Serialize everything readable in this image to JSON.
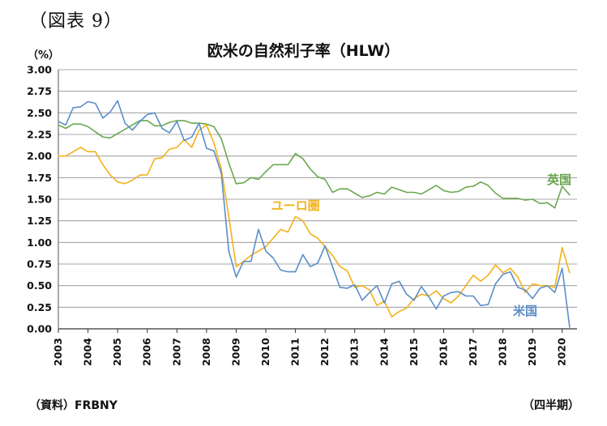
{
  "figure_label": "（図表 9）",
  "title": "欧米の自然利子率（HLW）",
  "unit": "（%）",
  "source": "（資料）FRBNY",
  "period_label": "（四半期）",
  "chart_data": {
    "type": "line",
    "title": "欧米の自然利子率（HLW）",
    "ylabel": "（%）",
    "xlabel": "",
    "ylim": [
      0,
      3
    ],
    "xlim": [
      2003,
      2020.5
    ],
    "grid": true,
    "legend": "inline labels near series",
    "y_ticks": [
      "0.00",
      "0.25",
      "0.50",
      "0.75",
      "1.00",
      "1.25",
      "1.50",
      "1.75",
      "2.00",
      "2.25",
      "2.50",
      "2.75",
      "3.00"
    ],
    "x_ticks": [
      "2003",
      "2004",
      "2005",
      "2006",
      "2007",
      "2008",
      "2009",
      "2010",
      "2011",
      "2012",
      "2013",
      "2014",
      "2015",
      "2016",
      "2017",
      "2018",
      "2019",
      "2020"
    ],
    "series": [
      {
        "name": "英国",
        "color": "#6aa84f",
        "label_at": [
          2019.9,
          1.68
        ],
        "points": [
          [
            2003.0,
            2.36
          ],
          [
            2003.25,
            2.32
          ],
          [
            2003.5,
            2.37
          ],
          [
            2003.75,
            2.37
          ],
          [
            2004.0,
            2.34
          ],
          [
            2004.25,
            2.28
          ],
          [
            2004.5,
            2.22
          ],
          [
            2004.75,
            2.21
          ],
          [
            2005.0,
            2.26
          ],
          [
            2005.25,
            2.31
          ],
          [
            2005.5,
            2.36
          ],
          [
            2005.75,
            2.41
          ],
          [
            2006.0,
            2.41
          ],
          [
            2006.25,
            2.35
          ],
          [
            2006.5,
            2.35
          ],
          [
            2006.75,
            2.39
          ],
          [
            2007.0,
            2.41
          ],
          [
            2007.25,
            2.41
          ],
          [
            2007.5,
            2.38
          ],
          [
            2007.75,
            2.38
          ],
          [
            2008.0,
            2.37
          ],
          [
            2008.25,
            2.34
          ],
          [
            2008.5,
            2.2
          ],
          [
            2008.75,
            1.92
          ],
          [
            2009.0,
            1.68
          ],
          [
            2009.25,
            1.69
          ],
          [
            2009.5,
            1.75
          ],
          [
            2009.75,
            1.73
          ],
          [
            2010.0,
            1.82
          ],
          [
            2010.25,
            1.9
          ],
          [
            2010.5,
            1.9
          ],
          [
            2010.75,
            1.9
          ],
          [
            2011.0,
            2.03
          ],
          [
            2011.25,
            1.97
          ],
          [
            2011.5,
            1.85
          ],
          [
            2011.75,
            1.76
          ],
          [
            2012.0,
            1.73
          ],
          [
            2012.25,
            1.58
          ],
          [
            2012.5,
            1.62
          ],
          [
            2012.75,
            1.62
          ],
          [
            2013.0,
            1.57
          ],
          [
            2013.25,
            1.52
          ],
          [
            2013.5,
            1.54
          ],
          [
            2013.75,
            1.58
          ],
          [
            2014.0,
            1.56
          ],
          [
            2014.25,
            1.64
          ],
          [
            2014.5,
            1.61
          ],
          [
            2014.75,
            1.58
          ],
          [
            2015.0,
            1.58
          ],
          [
            2015.25,
            1.56
          ],
          [
            2015.5,
            1.61
          ],
          [
            2015.75,
            1.66
          ],
          [
            2016.0,
            1.6
          ],
          [
            2016.25,
            1.58
          ],
          [
            2016.5,
            1.59
          ],
          [
            2016.75,
            1.64
          ],
          [
            2017.0,
            1.65
          ],
          [
            2017.25,
            1.7
          ],
          [
            2017.5,
            1.66
          ],
          [
            2017.75,
            1.57
          ],
          [
            2018.0,
            1.51
          ],
          [
            2018.25,
            1.51
          ],
          [
            2018.5,
            1.51
          ],
          [
            2018.75,
            1.49
          ],
          [
            2019.0,
            1.5
          ],
          [
            2019.25,
            1.45
          ],
          [
            2019.5,
            1.46
          ],
          [
            2019.75,
            1.4
          ],
          [
            2020.0,
            1.65
          ],
          [
            2020.25,
            1.55
          ]
        ]
      },
      {
        "name": "ユーロ圏",
        "color": "#f2b21b",
        "label_at": [
          2011.0,
          1.38
        ],
        "points": [
          [
            2003.0,
            2.0
          ],
          [
            2003.25,
            2.0
          ],
          [
            2003.5,
            2.05
          ],
          [
            2003.75,
            2.1
          ],
          [
            2004.0,
            2.05
          ],
          [
            2004.25,
            2.05
          ],
          [
            2004.5,
            1.9
          ],
          [
            2004.75,
            1.78
          ],
          [
            2005.0,
            1.7
          ],
          [
            2005.25,
            1.68
          ],
          [
            2005.5,
            1.72
          ],
          [
            2005.75,
            1.78
          ],
          [
            2006.0,
            1.78
          ],
          [
            2006.25,
            1.97
          ],
          [
            2006.5,
            1.98
          ],
          [
            2006.75,
            2.08
          ],
          [
            2007.0,
            2.1
          ],
          [
            2007.25,
            2.19
          ],
          [
            2007.5,
            2.1
          ],
          [
            2007.75,
            2.3
          ],
          [
            2008.0,
            2.36
          ],
          [
            2008.25,
            2.15
          ],
          [
            2008.5,
            1.85
          ],
          [
            2008.75,
            1.3
          ],
          [
            2009.0,
            0.72
          ],
          [
            2009.25,
            0.78
          ],
          [
            2009.5,
            0.85
          ],
          [
            2009.75,
            0.9
          ],
          [
            2010.0,
            0.95
          ],
          [
            2010.25,
            1.05
          ],
          [
            2010.5,
            1.15
          ],
          [
            2010.75,
            1.12
          ],
          [
            2011.0,
            1.3
          ],
          [
            2011.25,
            1.25
          ],
          [
            2011.5,
            1.1
          ],
          [
            2011.75,
            1.05
          ],
          [
            2012.0,
            0.95
          ],
          [
            2012.25,
            0.85
          ],
          [
            2012.5,
            0.72
          ],
          [
            2012.75,
            0.67
          ],
          [
            2013.0,
            0.48
          ],
          [
            2013.25,
            0.5
          ],
          [
            2013.5,
            0.45
          ],
          [
            2013.75,
            0.27
          ],
          [
            2014.0,
            0.32
          ],
          [
            2014.25,
            0.14
          ],
          [
            2014.5,
            0.2
          ],
          [
            2014.75,
            0.24
          ],
          [
            2015.0,
            0.35
          ],
          [
            2015.25,
            0.4
          ],
          [
            2015.5,
            0.38
          ],
          [
            2015.75,
            0.44
          ],
          [
            2016.0,
            0.35
          ],
          [
            2016.25,
            0.3
          ],
          [
            2016.5,
            0.38
          ],
          [
            2016.75,
            0.5
          ],
          [
            2017.0,
            0.62
          ],
          [
            2017.25,
            0.55
          ],
          [
            2017.5,
            0.62
          ],
          [
            2017.75,
            0.74
          ],
          [
            2018.0,
            0.65
          ],
          [
            2018.25,
            0.7
          ],
          [
            2018.5,
            0.6
          ],
          [
            2018.75,
            0.42
          ],
          [
            2019.0,
            0.52
          ],
          [
            2019.25,
            0.5
          ],
          [
            2019.5,
            0.5
          ],
          [
            2019.75,
            0.48
          ],
          [
            2020.0,
            0.94
          ],
          [
            2020.25,
            0.65
          ]
        ]
      },
      {
        "name": "米国",
        "color": "#5b8ec9",
        "label_at": [
          2018.75,
          0.16
        ],
        "points": [
          [
            2003.0,
            2.4
          ],
          [
            2003.25,
            2.36
          ],
          [
            2003.5,
            2.56
          ],
          [
            2003.75,
            2.57
          ],
          [
            2004.0,
            2.63
          ],
          [
            2004.25,
            2.61
          ],
          [
            2004.5,
            2.44
          ],
          [
            2004.75,
            2.51
          ],
          [
            2005.0,
            2.64
          ],
          [
            2005.25,
            2.38
          ],
          [
            2005.5,
            2.3
          ],
          [
            2005.75,
            2.4
          ],
          [
            2006.0,
            2.48
          ],
          [
            2006.25,
            2.5
          ],
          [
            2006.5,
            2.32
          ],
          [
            2006.75,
            2.27
          ],
          [
            2007.0,
            2.4
          ],
          [
            2007.25,
            2.18
          ],
          [
            2007.5,
            2.22
          ],
          [
            2007.75,
            2.38
          ],
          [
            2008.0,
            2.09
          ],
          [
            2008.25,
            2.06
          ],
          [
            2008.5,
            1.8
          ],
          [
            2008.75,
            0.9
          ],
          [
            2009.0,
            0.6
          ],
          [
            2009.25,
            0.78
          ],
          [
            2009.5,
            0.78
          ],
          [
            2009.75,
            1.15
          ],
          [
            2010.0,
            0.9
          ],
          [
            2010.25,
            0.82
          ],
          [
            2010.5,
            0.68
          ],
          [
            2010.75,
            0.66
          ],
          [
            2011.0,
            0.66
          ],
          [
            2011.25,
            0.86
          ],
          [
            2011.5,
            0.72
          ],
          [
            2011.75,
            0.76
          ],
          [
            2012.0,
            0.96
          ],
          [
            2012.25,
            0.72
          ],
          [
            2012.5,
            0.48
          ],
          [
            2012.75,
            0.47
          ],
          [
            2013.0,
            0.51
          ],
          [
            2013.25,
            0.33
          ],
          [
            2013.5,
            0.42
          ],
          [
            2013.75,
            0.5
          ],
          [
            2014.0,
            0.3
          ],
          [
            2014.25,
            0.52
          ],
          [
            2014.5,
            0.55
          ],
          [
            2014.75,
            0.4
          ],
          [
            2015.0,
            0.33
          ],
          [
            2015.25,
            0.49
          ],
          [
            2015.5,
            0.37
          ],
          [
            2015.75,
            0.23
          ],
          [
            2016.0,
            0.38
          ],
          [
            2016.25,
            0.42
          ],
          [
            2016.5,
            0.43
          ],
          [
            2016.75,
            0.38
          ],
          [
            2017.0,
            0.38
          ],
          [
            2017.25,
            0.27
          ],
          [
            2017.5,
            0.28
          ],
          [
            2017.75,
            0.52
          ],
          [
            2018.0,
            0.63
          ],
          [
            2018.25,
            0.66
          ],
          [
            2018.5,
            0.48
          ],
          [
            2018.75,
            0.45
          ],
          [
            2019.0,
            0.35
          ],
          [
            2019.25,
            0.47
          ],
          [
            2019.5,
            0.5
          ],
          [
            2019.75,
            0.42
          ],
          [
            2020.0,
            0.7
          ],
          [
            2020.25,
            0.02
          ]
        ]
      }
    ]
  }
}
